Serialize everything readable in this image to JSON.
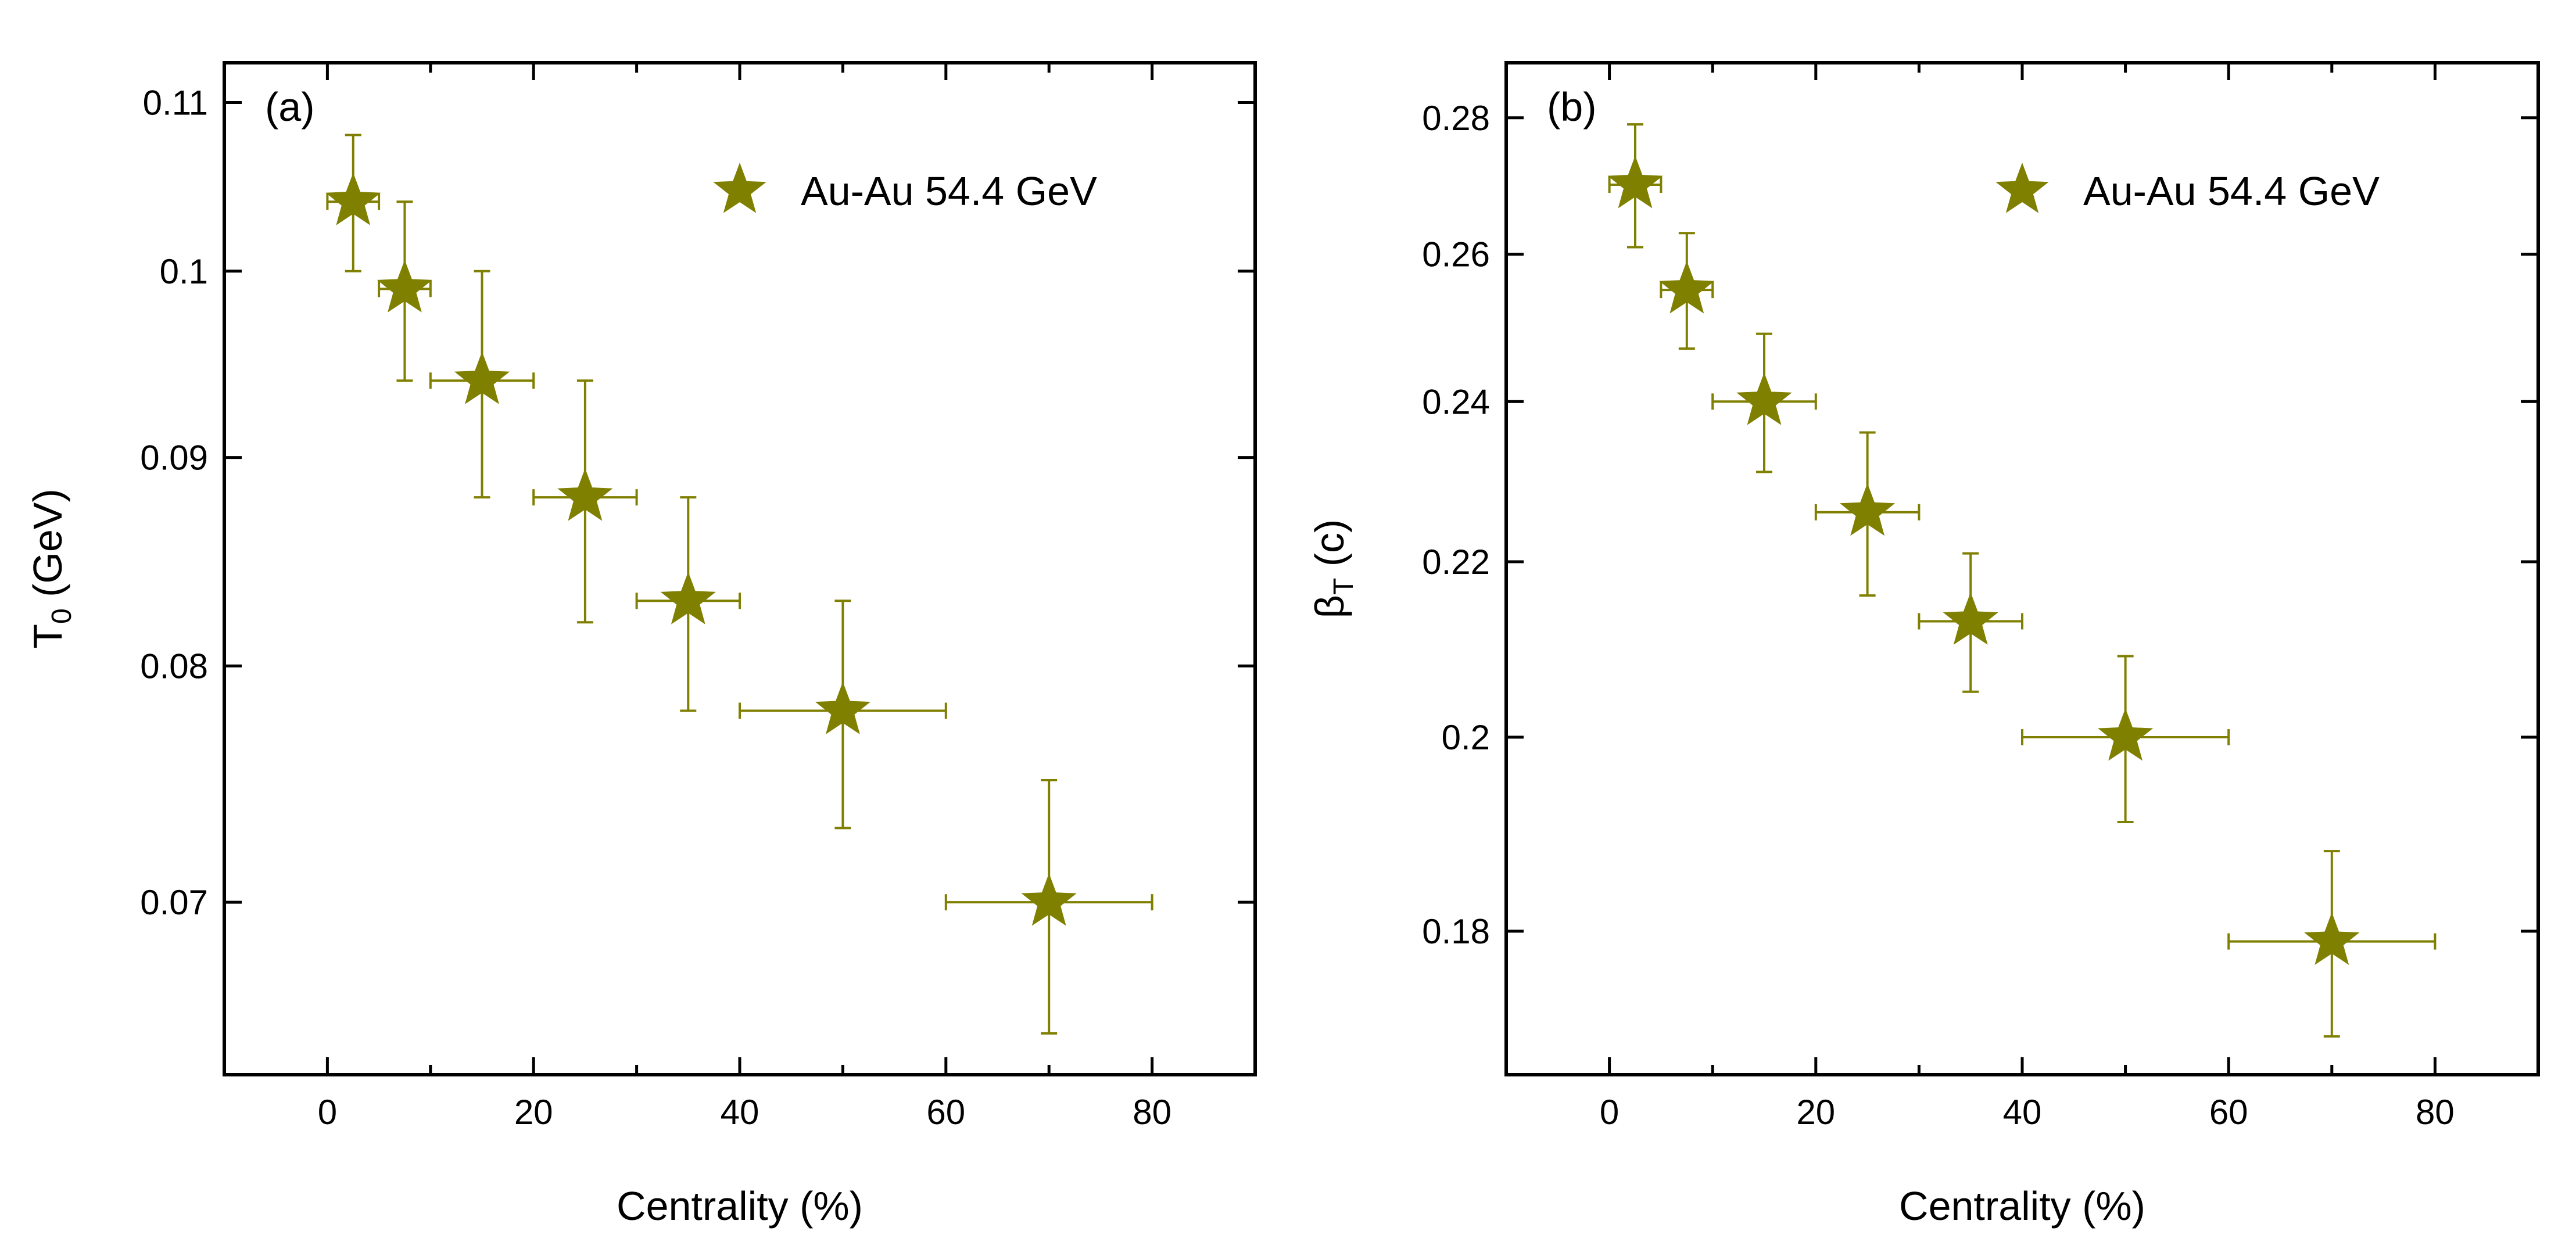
{
  "chart_data": [
    {
      "type": "scatter",
      "panel_label": "(a)",
      "xlabel": "Centrality (%)",
      "ylabel": "T",
      "ylabel_sub": "0",
      "ylabel_unit": " (GeV)",
      "yscale": "log",
      "xlim": [
        -10,
        90
      ],
      "ylim": [
        0.0635,
        0.1125
      ],
      "xticks": [
        0,
        20,
        40,
        60,
        80
      ],
      "yticks": [
        0.07,
        0.08,
        0.09,
        0.1,
        0.11
      ],
      "xtick_labels": [
        "0",
        "20",
        "40",
        "60",
        "80"
      ],
      "ytick_labels": [
        "0.07",
        "0.08",
        "0.09",
        "0.1",
        "0.11"
      ],
      "legend": {
        "label": "Au-Au 54.4 GeV",
        "position": "top-right"
      },
      "series": [
        {
          "name": "Au-Au 54.4 GeV",
          "color": "#7f7f00",
          "marker": "star",
          "x": [
            2.5,
            7.5,
            15,
            25,
            35,
            50,
            70
          ],
          "xerr": [
            2.5,
            2.5,
            5,
            5,
            5,
            10,
            10
          ],
          "y": [
            0.104,
            0.099,
            0.094,
            0.088,
            0.083,
            0.078,
            0.07
          ],
          "yerr": [
            0.004,
            0.005,
            0.006,
            0.006,
            0.005,
            0.005,
            0.005
          ]
        }
      ]
    },
    {
      "type": "scatter",
      "panel_label": "(b)",
      "xlabel": "Centrality (%)",
      "ylabel": "β",
      "ylabel_sub": "T",
      "ylabel_unit": " (c)",
      "yscale": "log",
      "xlim": [
        -10,
        90
      ],
      "ylim": [
        0.1665,
        0.2885
      ],
      "xticks": [
        0,
        20,
        40,
        60,
        80
      ],
      "yticks": [
        0.18,
        0.2,
        0.22,
        0.24,
        0.26,
        0.28
      ],
      "xtick_labels": [
        "0",
        "20",
        "40",
        "60",
        "80"
      ],
      "ytick_labels": [
        "0.18",
        "0.2",
        "0.22",
        "0.24",
        "0.26",
        "0.28"
      ],
      "legend": {
        "label": "Au-Au 54.4 GeV",
        "position": "top-right"
      },
      "series": [
        {
          "name": "Au-Au 54.4 GeV",
          "color": "#7f7f00",
          "marker": "star",
          "x": [
            2.5,
            7.5,
            15,
            25,
            35,
            50,
            70
          ],
          "xerr": [
            2.5,
            2.5,
            5,
            5,
            5,
            10,
            10
          ],
          "y": [
            0.27,
            0.255,
            0.24,
            0.226,
            0.213,
            0.2,
            0.179
          ],
          "yerr": [
            0.009,
            0.008,
            0.009,
            0.01,
            0.008,
            0.009,
            0.009
          ]
        }
      ]
    }
  ]
}
